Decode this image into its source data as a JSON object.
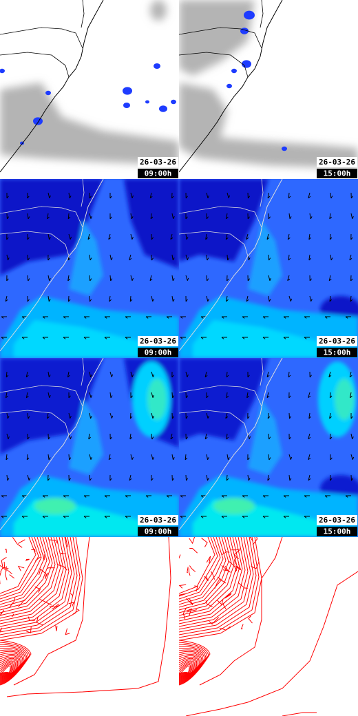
{
  "panels": [
    {
      "date": "26-03-26",
      "time": "09:00h"
    },
    {
      "date": "26-03-26",
      "time": "15:00h"
    },
    {
      "date": "26-03-26",
      "time": "09:00h"
    },
    {
      "date": "26-03-26",
      "time": "15:00h"
    },
    {
      "date": "26-03-26",
      "time": "09:00h"
    },
    {
      "date": "26-03-26",
      "time": "15:00h"
    }
  ]
}
